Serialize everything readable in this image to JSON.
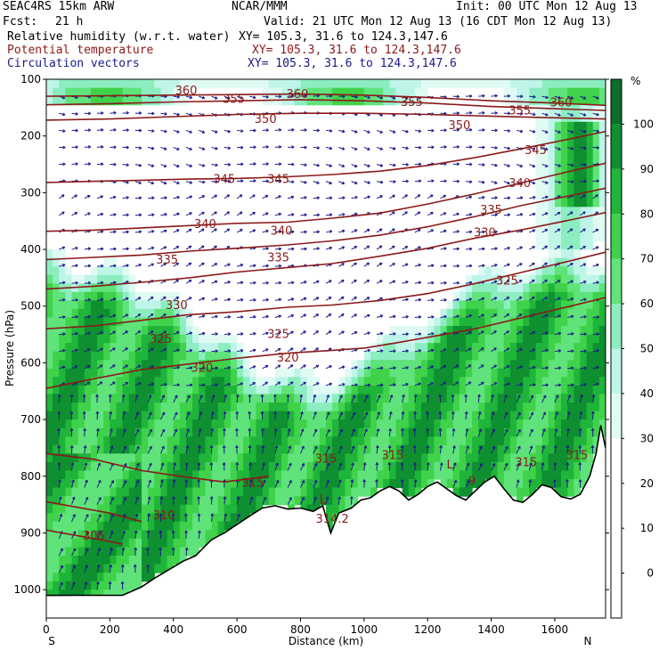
{
  "header": {
    "model": "SEAC4RS 15km ARW",
    "center": "NCAR/MMM",
    "init": "Init: 00 UTC Mon 12 Aug 13",
    "fcst_label": "Fcst:",
    "fcst_value": "21 h",
    "valid": "Valid: 21 UTC Mon 12 Aug 13 (16 CDT Mon 12 Aug 13)",
    "fields": [
      {
        "name": "Relative humidity (w.r.t. water)",
        "xy": "XY= 105.3, 31.6 to 124.3,147.6",
        "color": "#000000"
      },
      {
        "name": "Potential temperature",
        "xy": "XY= 105.3, 31.6 to 124.3,147.6",
        "color": "#8b1a1a"
      },
      {
        "name": "Circulation vectors",
        "xy": "XY= 105.3, 31.6 to 124.3,147.6",
        "color": "#1a1a8b"
      }
    ]
  },
  "chart_data": {
    "type": "heatmap",
    "title": "Relative humidity (w.r.t. water), Potential temperature, Circulation vectors",
    "xlabel": "Distance (km)",
    "ylabel": "Pressure (hPa)",
    "xlim": [
      0,
      1760
    ],
    "ylim": [
      1050,
      100
    ],
    "x_ticks": [
      0,
      200,
      400,
      600,
      800,
      1000,
      1200,
      1400,
      1600
    ],
    "y_ticks": [
      100,
      200,
      300,
      400,
      500,
      600,
      700,
      800,
      900,
      1000
    ],
    "x_end_labels": {
      "left": "S",
      "right": "N"
    },
    "colorbar": {
      "unit": "%",
      "ticks": [
        0,
        10,
        20,
        30,
        40,
        50,
        60,
        70,
        80,
        90,
        100
      ],
      "bins": [
        {
          "from": -10,
          "to": 0,
          "color": "#ffffff"
        },
        {
          "from": 0,
          "to": 10,
          "color": "#ffffff"
        },
        {
          "from": 10,
          "to": 20,
          "color": "#ffffff"
        },
        {
          "from": 20,
          "to": 30,
          "color": "#ffffff"
        },
        {
          "from": 30,
          "to": 40,
          "color": "#e0fbf4"
        },
        {
          "from": 40,
          "to": 50,
          "color": "#bff5e9"
        },
        {
          "from": 50,
          "to": 60,
          "color": "#8ceec0"
        },
        {
          "from": 60,
          "to": 70,
          "color": "#5fe37a"
        },
        {
          "from": 70,
          "to": 80,
          "color": "#3fd24a"
        },
        {
          "from": 80,
          "to": 90,
          "color": "#1fb43a"
        },
        {
          "from": 90,
          "to": 100,
          "color": "#0e8f30"
        },
        {
          "from": 100,
          "to": 110,
          "color": "#087028"
        }
      ]
    },
    "theta_contours": [
      {
        "value": 305,
        "points": [
          [
            0,
            895
          ],
          [
            100,
            905
          ],
          [
            200,
            915
          ],
          [
            240,
            920
          ]
        ]
      },
      {
        "value": 310,
        "points": [
          [
            0,
            845
          ],
          [
            100,
            855
          ],
          [
            200,
            865
          ],
          [
            300,
            880
          ]
        ]
      },
      {
        "value": 315,
        "points": [
          [
            0,
            760
          ],
          [
            150,
            770
          ],
          [
            300,
            790
          ],
          [
            420,
            800
          ],
          [
            560,
            810
          ],
          [
            700,
            800
          ]
        ]
      },
      {
        "value": 320,
        "points": [
          [
            0,
            645
          ],
          [
            150,
            628
          ],
          [
            300,
            612
          ],
          [
            450,
            602
          ],
          [
            600,
            592
          ],
          [
            760,
            583
          ],
          [
            900,
            578
          ],
          [
            1000,
            574
          ],
          [
            1100,
            565
          ],
          [
            1200,
            555
          ],
          [
            1350,
            540
          ],
          [
            1500,
            520
          ],
          [
            1650,
            500
          ],
          [
            1760,
            485
          ]
        ]
      },
      {
        "value": 325,
        "points": [
          [
            0,
            540
          ],
          [
            150,
            535
          ],
          [
            300,
            525
          ],
          [
            450,
            515
          ],
          [
            600,
            510
          ],
          [
            760,
            502
          ],
          [
            900,
            498
          ],
          [
            1050,
            490
          ],
          [
            1200,
            478
          ],
          [
            1350,
            460
          ],
          [
            1500,
            440
          ],
          [
            1650,
            420
          ],
          [
            1760,
            405
          ]
        ]
      },
      {
        "value": 330,
        "points": [
          [
            0,
            470
          ],
          [
            150,
            465
          ],
          [
            300,
            458
          ],
          [
            450,
            450
          ],
          [
            600,
            440
          ],
          [
            760,
            432
          ],
          [
            900,
            425
          ],
          [
            1050,
            412
          ],
          [
            1200,
            398
          ],
          [
            1350,
            380
          ],
          [
            1500,
            365
          ],
          [
            1650,
            348
          ],
          [
            1760,
            335
          ]
        ]
      },
      {
        "value": 335,
        "points": [
          [
            0,
            418
          ],
          [
            150,
            414
          ],
          [
            300,
            410
          ],
          [
            450,
            403
          ],
          [
            600,
            398
          ],
          [
            760,
            392
          ],
          [
            900,
            385
          ],
          [
            1050,
            375
          ],
          [
            1200,
            360
          ],
          [
            1350,
            342
          ],
          [
            1500,
            322
          ],
          [
            1650,
            305
          ],
          [
            1760,
            292
          ]
        ]
      },
      {
        "value": 340,
        "points": [
          [
            0,
            368
          ],
          [
            150,
            366
          ],
          [
            300,
            362
          ],
          [
            450,
            358
          ],
          [
            600,
            354
          ],
          [
            760,
            352
          ],
          [
            900,
            345
          ],
          [
            1050,
            336
          ],
          [
            1200,
            320
          ],
          [
            1350,
            302
          ],
          [
            1500,
            282
          ],
          [
            1650,
            262
          ],
          [
            1760,
            248
          ]
        ]
      },
      {
        "value": 345,
        "points": [
          [
            0,
            282
          ],
          [
            150,
            280
          ],
          [
            300,
            278
          ],
          [
            450,
            276
          ],
          [
            600,
            275
          ],
          [
            760,
            272
          ],
          [
            900,
            268
          ],
          [
            1050,
            262
          ],
          [
            1200,
            252
          ],
          [
            1350,
            238
          ],
          [
            1500,
            222
          ],
          [
            1650,
            205
          ],
          [
            1760,
            192
          ]
        ]
      },
      {
        "value": 350,
        "points": [
          [
            0,
            172
          ],
          [
            200,
            170
          ],
          [
            400,
            166
          ],
          [
            600,
            162
          ],
          [
            800,
            160
          ],
          [
            1000,
            160
          ],
          [
            1200,
            162
          ],
          [
            1400,
            165
          ],
          [
            1600,
            168
          ],
          [
            1760,
            170
          ]
        ]
      },
      {
        "value": 355,
        "points": [
          [
            0,
            145
          ],
          [
            200,
            143
          ],
          [
            400,
            140
          ],
          [
            600,
            138
          ],
          [
            800,
            136
          ],
          [
            1000,
            138
          ],
          [
            1200,
            142
          ],
          [
            1400,
            148
          ],
          [
            1600,
            152
          ],
          [
            1760,
            155
          ]
        ]
      },
      {
        "value": 360,
        "points": [
          [
            0,
            130
          ],
          [
            200,
            129
          ],
          [
            400,
            128
          ],
          [
            600,
            127
          ],
          [
            800,
            126
          ],
          [
            1000,
            128
          ],
          [
            1200,
            132
          ],
          [
            1400,
            138
          ],
          [
            1600,
            142
          ],
          [
            1760,
            146
          ]
        ]
      }
    ],
    "contour_labels": [
      {
        "text": "360",
        "x": 440,
        "p": 127
      },
      {
        "text": "360",
        "x": 790,
        "p": 133
      },
      {
        "text": "360",
        "x": 1620,
        "p": 148
      },
      {
        "text": "355",
        "x": 590,
        "p": 142
      },
      {
        "text": "355",
        "x": 1150,
        "p": 147
      },
      {
        "text": "355",
        "x": 1490,
        "p": 162
      },
      {
        "text": "350",
        "x": 690,
        "p": 177
      },
      {
        "text": "350",
        "x": 1300,
        "p": 188
      },
      {
        "text": "345",
        "x": 1540,
        "p": 232
      },
      {
        "text": "345",
        "x": 560,
        "p": 283
      },
      {
        "text": "345",
        "x": 730,
        "p": 283
      },
      {
        "text": "340",
        "x": 1490,
        "p": 290
      },
      {
        "text": "335",
        "x": 1400,
        "p": 337
      },
      {
        "text": "340",
        "x": 500,
        "p": 362
      },
      {
        "text": "340",
        "x": 740,
        "p": 374
      },
      {
        "text": "330",
        "x": 1380,
        "p": 377
      },
      {
        "text": "335",
        "x": 380,
        "p": 425
      },
      {
        "text": "335",
        "x": 730,
        "p": 421
      },
      {
        "text": "325",
        "x": 1450,
        "p": 462
      },
      {
        "text": "330",
        "x": 410,
        "p": 505
      },
      {
        "text": "325",
        "x": 360,
        "p": 565
      },
      {
        "text": "325",
        "x": 730,
        "p": 556
      },
      {
        "text": "320",
        "x": 490,
        "p": 616
      },
      {
        "text": "320",
        "x": 760,
        "p": 598
      },
      {
        "text": "315",
        "x": 880,
        "p": 776
      },
      {
        "text": "315",
        "x": 1090,
        "p": 770
      },
      {
        "text": "315",
        "x": 650,
        "p": 818
      },
      {
        "text": "315",
        "x": 1510,
        "p": 782
      },
      {
        "text": "315",
        "x": 1670,
        "p": 770
      },
      {
        "text": "310",
        "x": 370,
        "p": 876
      },
      {
        "text": "305",
        "x": 150,
        "p": 912
      },
      {
        "text": "314.2",
        "x": 900,
        "p": 882
      },
      {
        "text": "L",
        "x": 870,
        "p": 848
      },
      {
        "text": "L",
        "x": 1270,
        "p": 786
      },
      {
        "text": "9",
        "x": 1340,
        "p": 815
      }
    ],
    "terrain": [
      [
        0,
        1010
      ],
      [
        100,
        1010
      ],
      [
        240,
        1010
      ],
      [
        300,
        995
      ],
      [
        340,
        980
      ],
      [
        400,
        960
      ],
      [
        430,
        950
      ],
      [
        470,
        940
      ],
      [
        520,
        912
      ],
      [
        560,
        900
      ],
      [
        600,
        885
      ],
      [
        640,
        870
      ],
      [
        680,
        856
      ],
      [
        720,
        852
      ],
      [
        760,
        858
      ],
      [
        800,
        856
      ],
      [
        840,
        862
      ],
      [
        870,
        852
      ],
      [
        895,
        900
      ],
      [
        920,
        865
      ],
      [
        960,
        856
      ],
      [
        990,
        842
      ],
      [
        1020,
        838
      ],
      [
        1050,
        826
      ],
      [
        1080,
        818
      ],
      [
        1110,
        826
      ],
      [
        1140,
        842
      ],
      [
        1170,
        832
      ],
      [
        1200,
        818
      ],
      [
        1230,
        810
      ],
      [
        1260,
        822
      ],
      [
        1290,
        834
      ],
      [
        1320,
        842
      ],
      [
        1350,
        826
      ],
      [
        1380,
        810
      ],
      [
        1410,
        800
      ],
      [
        1440,
        822
      ],
      [
        1470,
        842
      ],
      [
        1500,
        846
      ],
      [
        1530,
        832
      ],
      [
        1560,
        815
      ],
      [
        1590,
        820
      ],
      [
        1620,
        836
      ],
      [
        1650,
        840
      ],
      [
        1680,
        832
      ],
      [
        1710,
        800
      ],
      [
        1730,
        760
      ],
      [
        1745,
        710
      ],
      [
        1760,
        750
      ]
    ],
    "annotations": [
      "L",
      "L",
      "9",
      "314.2"
    ]
  }
}
